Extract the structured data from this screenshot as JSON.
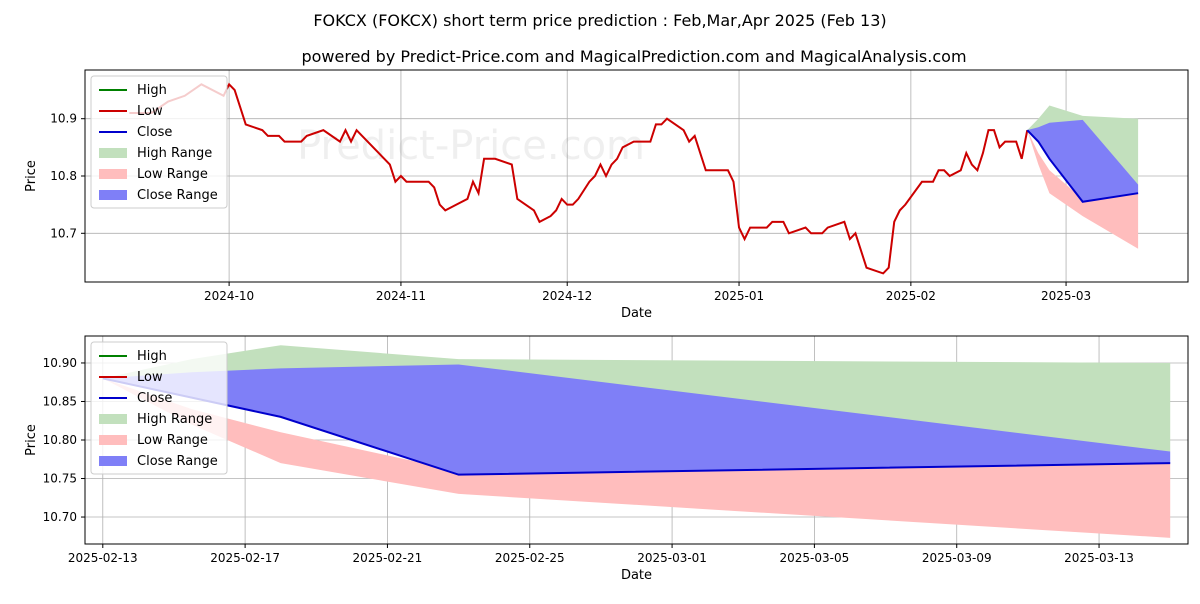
{
  "title": "FOKCX (FOKCX) short term price prediction : Feb,Mar,Apr 2025 (Feb 13)",
  "subtitle": "powered by Predict-Price.com and MagicalPrediction.com and MagicalAnalysis.com",
  "watermark": "Predict-Price.com",
  "colors": {
    "high": "#008000",
    "low": "#cc0000",
    "close": "#0000cc",
    "high_range": "#c2e0bd",
    "low_range": "#ffbdbd",
    "close_range": "#7f7ff7",
    "grid": "#b0b0b0"
  },
  "chart_data": [
    {
      "type": "line",
      "panel": "top",
      "xlabel": "Date",
      "ylabel": "Price",
      "xlim": [
        "2024-09-05",
        "2025-03-23"
      ],
      "ylim": [
        10.615,
        10.985
      ],
      "xticks": [
        {
          "date": "2024-10-01",
          "label": "2024-10"
        },
        {
          "date": "2024-11-01",
          "label": "2024-11"
        },
        {
          "date": "2024-12-01",
          "label": "2024-12"
        },
        {
          "date": "2025-01-01",
          "label": "2025-01"
        },
        {
          "date": "2025-02-01",
          "label": "2025-02"
        },
        {
          "date": "2025-03-01",
          "label": "2025-03"
        }
      ],
      "yticks": [
        10.7,
        10.8,
        10.9
      ],
      "ytick_labels": [
        "10.7",
        "10.8",
        "10.9"
      ],
      "grid": true,
      "legend_position": "top-left",
      "legend": [
        "High",
        "Low",
        "Close",
        "High Range",
        "Low Range",
        "Close Range"
      ],
      "history_low": [
        [
          "2024-09-13",
          10.91
        ],
        [
          "2024-09-17",
          10.91
        ],
        [
          "2024-09-20",
          10.93
        ],
        [
          "2024-09-23",
          10.94
        ],
        [
          "2024-09-26",
          10.96
        ],
        [
          "2024-09-30",
          10.94
        ],
        [
          "2024-10-01",
          10.96
        ],
        [
          "2024-10-02",
          10.95
        ],
        [
          "2024-10-03",
          10.92
        ],
        [
          "2024-10-04",
          10.89
        ],
        [
          "2024-10-07",
          10.88
        ],
        [
          "2024-10-08",
          10.87
        ],
        [
          "2024-10-10",
          10.87
        ],
        [
          "2024-10-11",
          10.86
        ],
        [
          "2024-10-14",
          10.86
        ],
        [
          "2024-10-15",
          10.87
        ],
        [
          "2024-10-18",
          10.88
        ],
        [
          "2024-10-21",
          10.86
        ],
        [
          "2024-10-22",
          10.88
        ],
        [
          "2024-10-23",
          10.86
        ],
        [
          "2024-10-24",
          10.88
        ],
        [
          "2024-10-25",
          10.87
        ],
        [
          "2024-10-28",
          10.84
        ],
        [
          "2024-10-29",
          10.83
        ],
        [
          "2024-10-30",
          10.82
        ],
        [
          "2024-10-31",
          10.79
        ],
        [
          "2024-11-01",
          10.8
        ],
        [
          "2024-11-02",
          10.79
        ],
        [
          "2024-11-04",
          10.79
        ],
        [
          "2024-11-06",
          10.79
        ],
        [
          "2024-11-07",
          10.78
        ],
        [
          "2024-11-08",
          10.75
        ],
        [
          "2024-11-09",
          10.74
        ],
        [
          "2024-11-11",
          10.75
        ],
        [
          "2024-11-13",
          10.76
        ],
        [
          "2024-11-14",
          10.79
        ],
        [
          "2024-11-15",
          10.77
        ],
        [
          "2024-11-16",
          10.83
        ],
        [
          "2024-11-18",
          10.83
        ],
        [
          "2024-11-21",
          10.82
        ],
        [
          "2024-11-22",
          10.76
        ],
        [
          "2024-11-25",
          10.74
        ],
        [
          "2024-11-26",
          10.72
        ],
        [
          "2024-11-28",
          10.73
        ],
        [
          "2024-11-29",
          10.74
        ],
        [
          "2024-11-30",
          10.76
        ],
        [
          "2024-12-01",
          10.75
        ],
        [
          "2024-12-02",
          10.75
        ],
        [
          "2024-12-03",
          10.76
        ],
        [
          "2024-12-05",
          10.79
        ],
        [
          "2024-12-06",
          10.8
        ],
        [
          "2024-12-07",
          10.82
        ],
        [
          "2024-12-08",
          10.8
        ],
        [
          "2024-12-09",
          10.82
        ],
        [
          "2024-12-10",
          10.83
        ],
        [
          "2024-12-11",
          10.85
        ],
        [
          "2024-12-13",
          10.86
        ],
        [
          "2024-12-16",
          10.86
        ],
        [
          "2024-12-17",
          10.89
        ],
        [
          "2024-12-18",
          10.89
        ],
        [
          "2024-12-19",
          10.9
        ],
        [
          "2024-12-22",
          10.88
        ],
        [
          "2024-12-23",
          10.86
        ],
        [
          "2024-12-24",
          10.87
        ],
        [
          "2024-12-26",
          10.81
        ],
        [
          "2024-12-27",
          10.81
        ],
        [
          "2024-12-30",
          10.81
        ],
        [
          "2024-12-31",
          10.79
        ],
        [
          "2025-01-01",
          10.71
        ],
        [
          "2025-01-02",
          10.69
        ],
        [
          "2025-01-03",
          10.71
        ],
        [
          "2025-01-06",
          10.71
        ],
        [
          "2025-01-07",
          10.72
        ],
        [
          "2025-01-09",
          10.72
        ],
        [
          "2025-01-10",
          10.7
        ],
        [
          "2025-01-13",
          10.71
        ],
        [
          "2025-01-14",
          10.7
        ],
        [
          "2025-01-16",
          10.7
        ],
        [
          "2025-01-17",
          10.71
        ],
        [
          "2025-01-20",
          10.72
        ],
        [
          "2025-01-21",
          10.69
        ],
        [
          "2025-01-22",
          10.7
        ],
        [
          "2025-01-24",
          10.64
        ],
        [
          "2025-01-27",
          10.63
        ],
        [
          "2025-01-28",
          10.64
        ],
        [
          "2025-01-29",
          10.72
        ],
        [
          "2025-01-30",
          10.74
        ],
        [
          "2025-01-31",
          10.75
        ],
        [
          "2025-02-03",
          10.79
        ],
        [
          "2025-02-05",
          10.79
        ],
        [
          "2025-02-06",
          10.81
        ],
        [
          "2025-02-07",
          10.81
        ],
        [
          "2025-02-08",
          10.8
        ],
        [
          "2025-02-10",
          10.81
        ],
        [
          "2025-02-11",
          10.84
        ],
        [
          "2025-02-12",
          10.82
        ],
        [
          "2025-02-13",
          10.81
        ],
        [
          "2025-02-14",
          10.84
        ],
        [
          "2025-02-15",
          10.88
        ],
        [
          "2025-02-16",
          10.88
        ],
        [
          "2025-02-17",
          10.85
        ],
        [
          "2025-02-18",
          10.86
        ],
        [
          "2025-02-19",
          10.86
        ],
        [
          "2025-02-20",
          10.86
        ],
        [
          "2025-02-21",
          10.83
        ],
        [
          "2025-02-22",
          10.88
        ]
      ],
      "forecast_dates": [
        "2025-02-22",
        "2025-02-24",
        "2025-02-26",
        "2025-03-04",
        "2025-03-14"
      ],
      "forecast_close": [
        10.88,
        10.86,
        10.83,
        10.755,
        10.77
      ],
      "high_range_upper": [
        10.88,
        10.9,
        10.923,
        10.905,
        10.9
      ],
      "high_range_lower": [
        10.88,
        10.87,
        10.85,
        10.82,
        10.785
      ],
      "low_range_upper": [
        10.88,
        10.84,
        10.81,
        10.76,
        10.77
      ],
      "low_range_lower": [
        10.88,
        10.82,
        10.77,
        10.73,
        10.673
      ],
      "close_range_upper": [
        10.88,
        10.885,
        10.893,
        10.898,
        10.785
      ],
      "close_range_lower": [
        10.88,
        10.86,
        10.83,
        10.755,
        10.77
      ]
    },
    {
      "type": "line",
      "panel": "bottom",
      "xlabel": "Date",
      "ylabel": "Price",
      "xlim": [
        "2025-02-12T12:00",
        "2025-03-15T12:00"
      ],
      "ylim": [
        10.665,
        10.935
      ],
      "xticks": [
        {
          "date": "2025-02-13",
          "label": "2025-02-13"
        },
        {
          "date": "2025-02-17",
          "label": "2025-02-17"
        },
        {
          "date": "2025-02-21",
          "label": "2025-02-21"
        },
        {
          "date": "2025-02-25",
          "label": "2025-02-25"
        },
        {
          "date": "2025-03-01",
          "label": "2025-03-01"
        },
        {
          "date": "2025-03-05",
          "label": "2025-03-05"
        },
        {
          "date": "2025-03-09",
          "label": "2025-03-09"
        },
        {
          "date": "2025-03-13",
          "label": "2025-03-13"
        }
      ],
      "yticks": [
        10.7,
        10.75,
        10.8,
        10.85,
        10.9
      ],
      "ytick_labels": [
        "10.70",
        "10.75",
        "10.80",
        "10.85",
        "10.90"
      ],
      "grid": true,
      "legend_position": "top-left",
      "legend": [
        "High",
        "Low",
        "Close",
        "High Range",
        "Low Range",
        "Close Range"
      ],
      "forecast_dates": [
        "2025-02-13",
        "2025-02-15T12:00",
        "2025-02-18",
        "2025-02-23",
        "2025-03-15"
      ],
      "forecast_close": [
        10.88,
        10.855,
        10.83,
        10.755,
        10.77
      ],
      "high_range_upper": [
        10.88,
        10.905,
        10.923,
        10.905,
        10.9
      ],
      "high_range_lower": [
        10.88,
        10.87,
        10.85,
        10.82,
        10.785
      ],
      "low_range_upper": [
        10.88,
        10.84,
        10.81,
        10.76,
        10.77
      ],
      "low_range_lower": [
        10.88,
        10.82,
        10.77,
        10.73,
        10.673
      ],
      "close_range_upper": [
        10.88,
        10.888,
        10.893,
        10.898,
        10.785
      ],
      "close_range_lower": [
        10.88,
        10.855,
        10.83,
        10.755,
        10.77
      ]
    }
  ]
}
